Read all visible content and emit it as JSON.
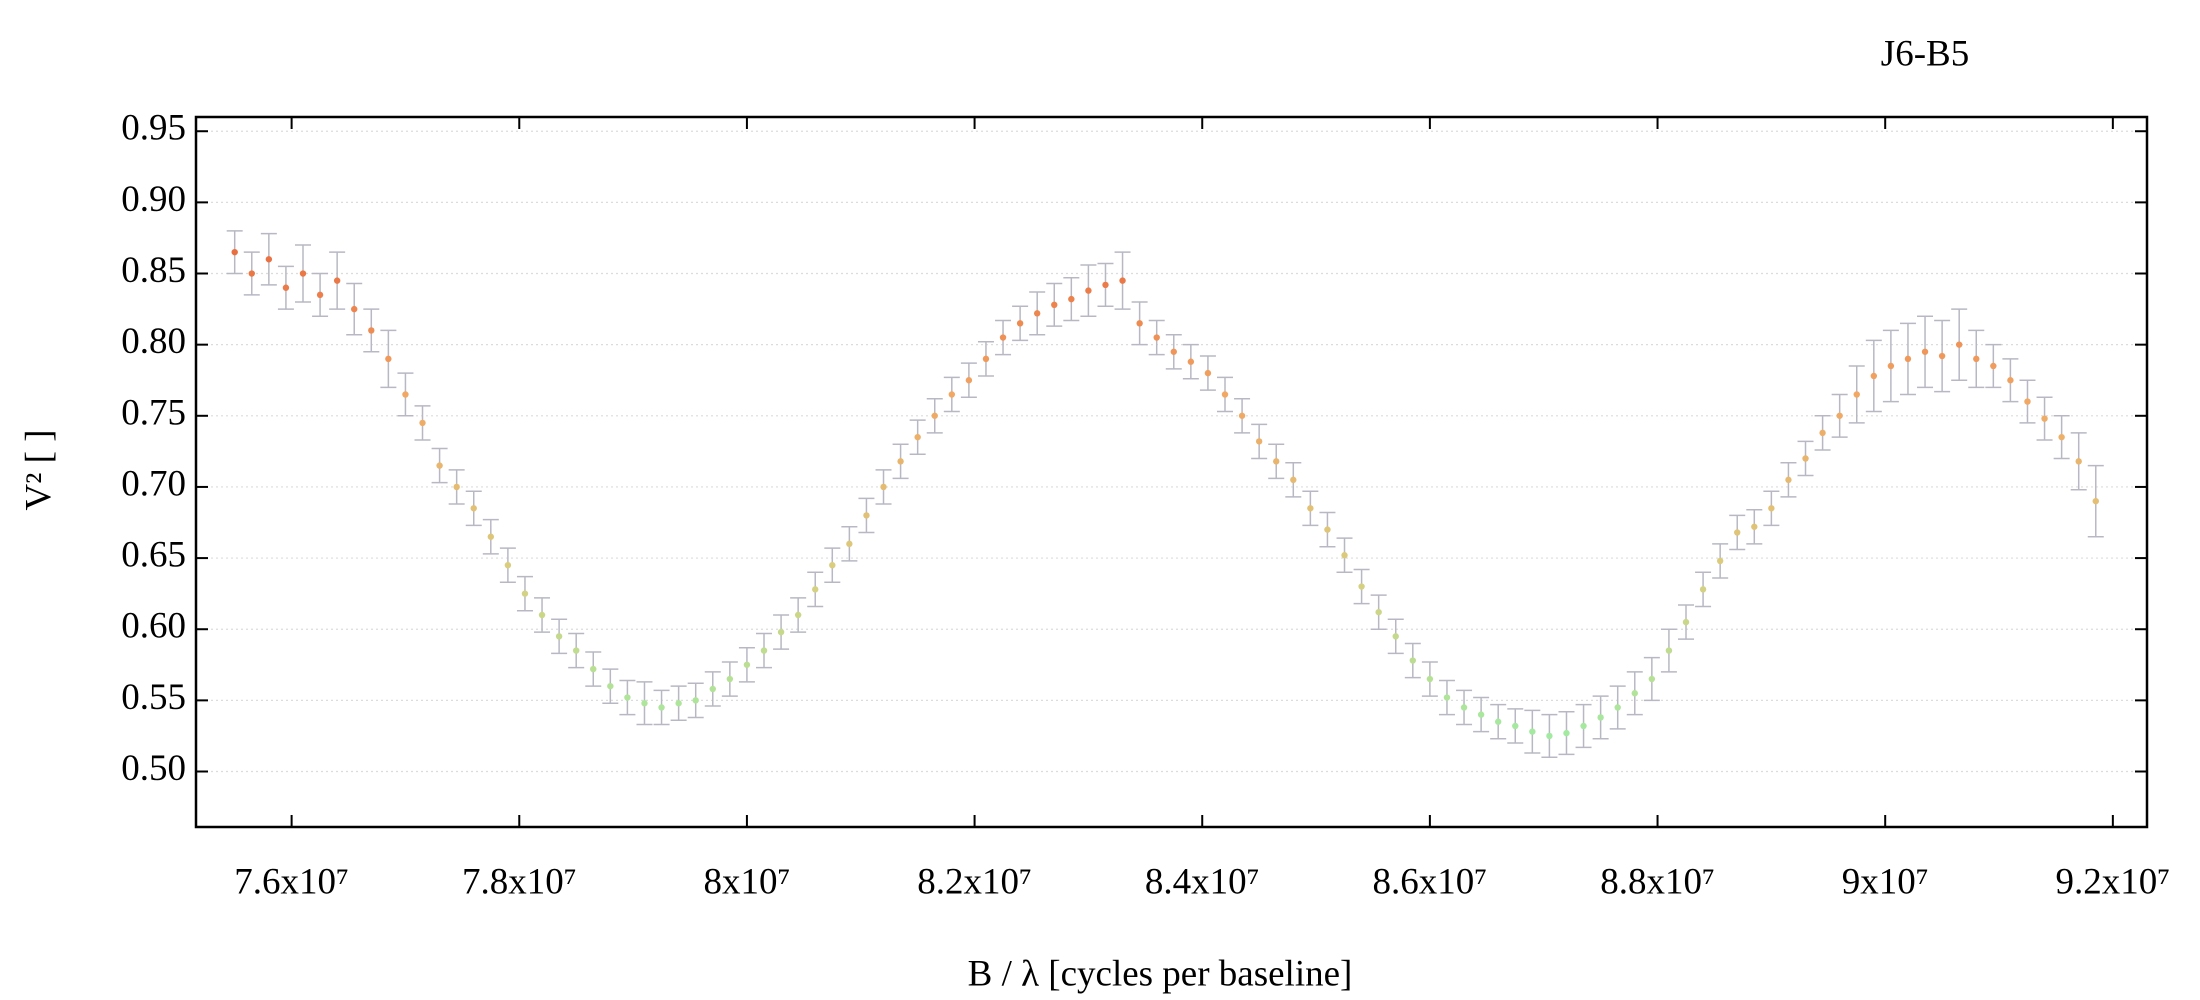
{
  "chart_data": {
    "type": "scatter",
    "title": "J6-B5",
    "xlabel": "B / λ [cycles per baseline]",
    "ylabel": "V² [ ]",
    "x": [
      75500000,
      75650000,
      75800000,
      75950000,
      76100000,
      76250000,
      76400000,
      76550000,
      76700000,
      76850000,
      77000000,
      77150000,
      77300000,
      77450000,
      77600000,
      77750000,
      77900000,
      78050000,
      78200000,
      78350000,
      78500000,
      78650000,
      78800000,
      78950000,
      79100000,
      79250000,
      79400000,
      79550000,
      79700000,
      79850000,
      80000000,
      80150000,
      80300000,
      80450000,
      80600000,
      80750000,
      80900000,
      81050000,
      81200000,
      81350000,
      81500000,
      81650000,
      81800000,
      81950000,
      82100000,
      82250000,
      82400000,
      82550000,
      82700000,
      82850000,
      83000000,
      83150000,
      83300000,
      83450000,
      83600000,
      83750000,
      83900000,
      84050000,
      84200000,
      84350000,
      84500000,
      84650000,
      84800000,
      84950000,
      85100000,
      85250000,
      85400000,
      85550000,
      85700000,
      85850000,
      86000000,
      86150000,
      86300000,
      86450000,
      86600000,
      86750000,
      86900000,
      87050000,
      87200000,
      87350000,
      87500000,
      87650000,
      87800000,
      87950000,
      88100000,
      88250000,
      88400000,
      88550000,
      88700000,
      88850000,
      89000000,
      89150000,
      89300000,
      89450000,
      89600000,
      89750000,
      89900000,
      90050000,
      90200000,
      90350000,
      90500000,
      90650000,
      90800000,
      90950000,
      91100000,
      91250000,
      91400000,
      91550000,
      91700000,
      91850000
    ],
    "values": [
      0.865,
      0.85,
      0.86,
      0.84,
      0.85,
      0.835,
      0.845,
      0.825,
      0.81,
      0.79,
      0.765,
      0.745,
      0.715,
      0.7,
      0.685,
      0.665,
      0.645,
      0.625,
      0.61,
      0.595,
      0.585,
      0.572,
      0.56,
      0.552,
      0.548,
      0.545,
      0.548,
      0.55,
      0.558,
      0.565,
      0.575,
      0.585,
      0.598,
      0.61,
      0.628,
      0.645,
      0.66,
      0.68,
      0.7,
      0.718,
      0.735,
      0.75,
      0.765,
      0.775,
      0.79,
      0.805,
      0.815,
      0.822,
      0.828,
      0.832,
      0.838,
      0.842,
      0.845,
      0.815,
      0.805,
      0.795,
      0.788,
      0.78,
      0.765,
      0.75,
      0.732,
      0.718,
      0.705,
      0.685,
      0.67,
      0.652,
      0.63,
      0.612,
      0.595,
      0.578,
      0.565,
      0.552,
      0.545,
      0.54,
      0.535,
      0.532,
      0.528,
      0.525,
      0.527,
      0.532,
      0.538,
      0.545,
      0.555,
      0.565,
      0.585,
      0.605,
      0.628,
      0.648,
      0.668,
      0.672,
      0.685,
      0.705,
      0.72,
      0.738,
      0.75,
      0.765,
      0.778,
      0.785,
      0.79,
      0.795,
      0.792,
      0.8,
      0.79,
      0.785,
      0.775,
      0.76,
      0.748,
      0.735,
      0.718,
      0.69
    ],
    "errors": [
      0.015,
      0.015,
      0.018,
      0.015,
      0.02,
      0.015,
      0.02,
      0.018,
      0.015,
      0.02,
      0.015,
      0.012,
      0.012,
      0.012,
      0.012,
      0.012,
      0.012,
      0.012,
      0.012,
      0.012,
      0.012,
      0.012,
      0.012,
      0.012,
      0.015,
      0.012,
      0.012,
      0.012,
      0.012,
      0.012,
      0.012,
      0.012,
      0.012,
      0.012,
      0.012,
      0.012,
      0.012,
      0.012,
      0.012,
      0.012,
      0.012,
      0.012,
      0.012,
      0.012,
      0.012,
      0.012,
      0.012,
      0.015,
      0.015,
      0.015,
      0.018,
      0.015,
      0.02,
      0.015,
      0.012,
      0.012,
      0.012,
      0.012,
      0.012,
      0.012,
      0.012,
      0.012,
      0.012,
      0.012,
      0.012,
      0.012,
      0.012,
      0.012,
      0.012,
      0.012,
      0.012,
      0.012,
      0.012,
      0.012,
      0.012,
      0.012,
      0.015,
      0.015,
      0.015,
      0.015,
      0.015,
      0.015,
      0.015,
      0.015,
      0.015,
      0.012,
      0.012,
      0.012,
      0.012,
      0.012,
      0.012,
      0.012,
      0.012,
      0.012,
      0.015,
      0.02,
      0.025,
      0.025,
      0.025,
      0.025,
      0.025,
      0.025,
      0.02,
      0.015,
      0.015,
      0.015,
      0.015,
      0.015,
      0.02,
      0.025
    ],
    "colormap": [
      "#96f0a8",
      "#d8d080",
      "#f2a662",
      "#e65a34"
    ],
    "errorbar_color": "#b8b8c4",
    "xlim": [
      75160000,
      92300000
    ],
    "xticks": [
      {
        "value": 76000000,
        "label": "7.6x10⁷"
      },
      {
        "value": 78000000,
        "label": "7.8x10⁷"
      },
      {
        "value": 80000000,
        "label": "8x10⁷"
      },
      {
        "value": 82000000,
        "label": "8.2x10⁷"
      },
      {
        "value": 84000000,
        "label": "8.4x10⁷"
      },
      {
        "value": 86000000,
        "label": "8.6x10⁷"
      },
      {
        "value": 88000000,
        "label": "8.8x10⁷"
      },
      {
        "value": 90000000,
        "label": "9x10⁷"
      },
      {
        "value": 92000000,
        "label": "9.2x10⁷"
      }
    ],
    "ylim": [
      0.461,
      0.96
    ],
    "yticks": [
      {
        "value": 0.5,
        "label": "0.50"
      },
      0.55,
      {
        "value": 0.6,
        "label": "0.60"
      },
      0.65,
      {
        "value": 0.7,
        "label": "0.70"
      },
      0.75,
      {
        "value": 0.8,
        "label": "0.80"
      },
      0.85,
      {
        "value": 0.9,
        "label": "0.90"
      },
      0.95
    ],
    "grid": true
  }
}
